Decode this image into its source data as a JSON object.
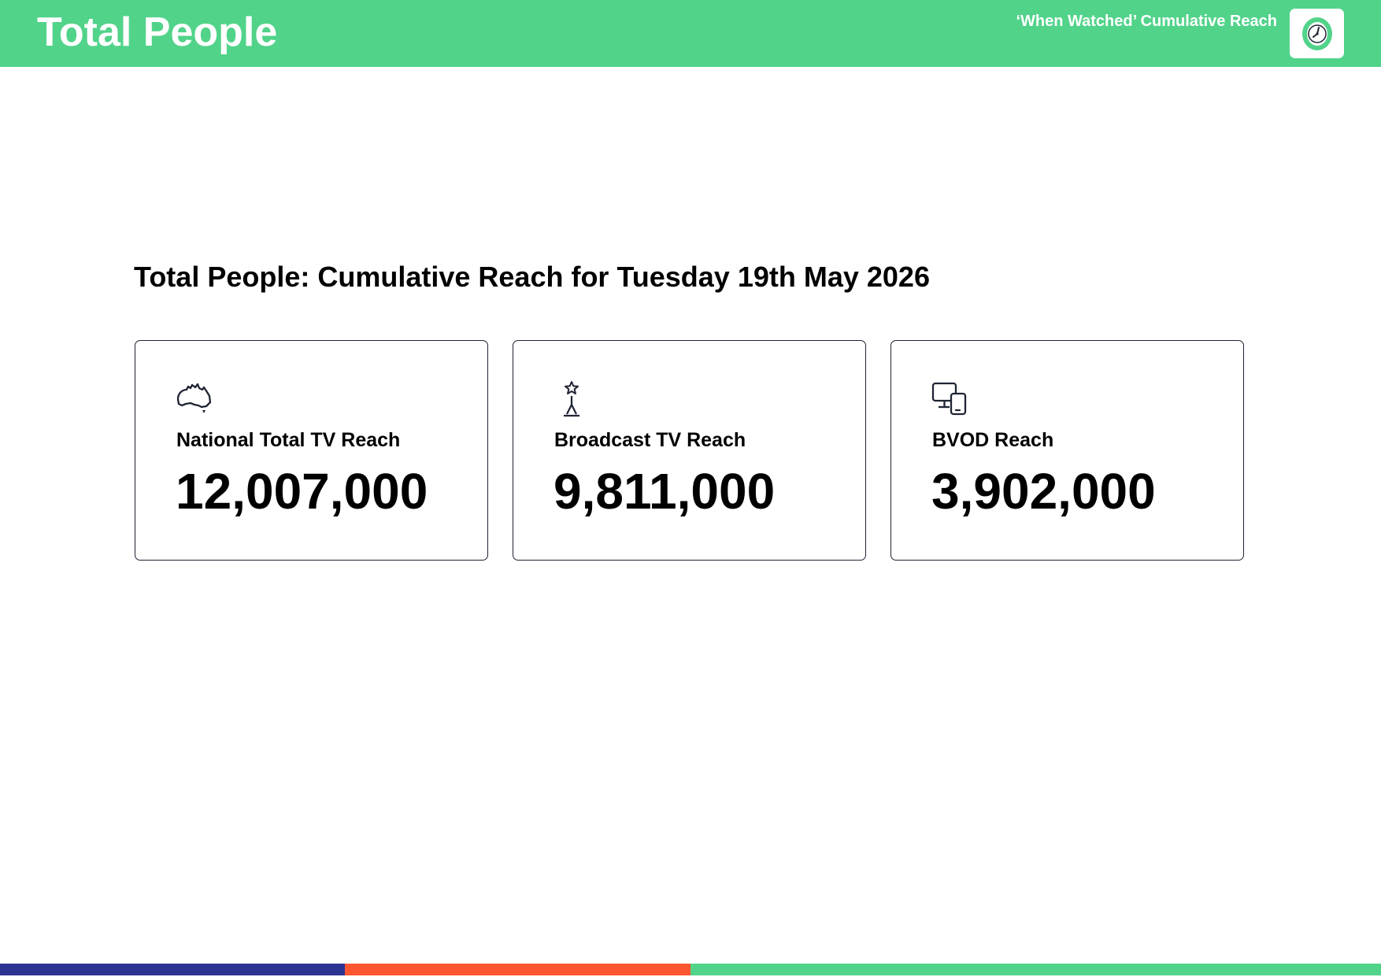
{
  "header": {
    "title": "Total People",
    "subtitle": "‘When Watched’ Cumulative Reach",
    "logo_icon": "clock-icon"
  },
  "main": {
    "heading": "Total People: Cumulative Reach for Tuesday 19th May 2026",
    "cards": [
      {
        "icon": "australia-map-icon",
        "label": "National Total TV Reach",
        "value": "12,007,000"
      },
      {
        "icon": "broadcast-tower-icon",
        "label": "Broadcast TV Reach",
        "value": "9,811,000"
      },
      {
        "icon": "devices-icon",
        "label": "BVOD Reach",
        "value": "3,902,000"
      }
    ]
  },
  "colors": {
    "header_green": "#51d38a",
    "navy": "#2d3393",
    "orange": "#fd5630",
    "green": "#51d38a",
    "icon_stroke": "#1f2433"
  }
}
